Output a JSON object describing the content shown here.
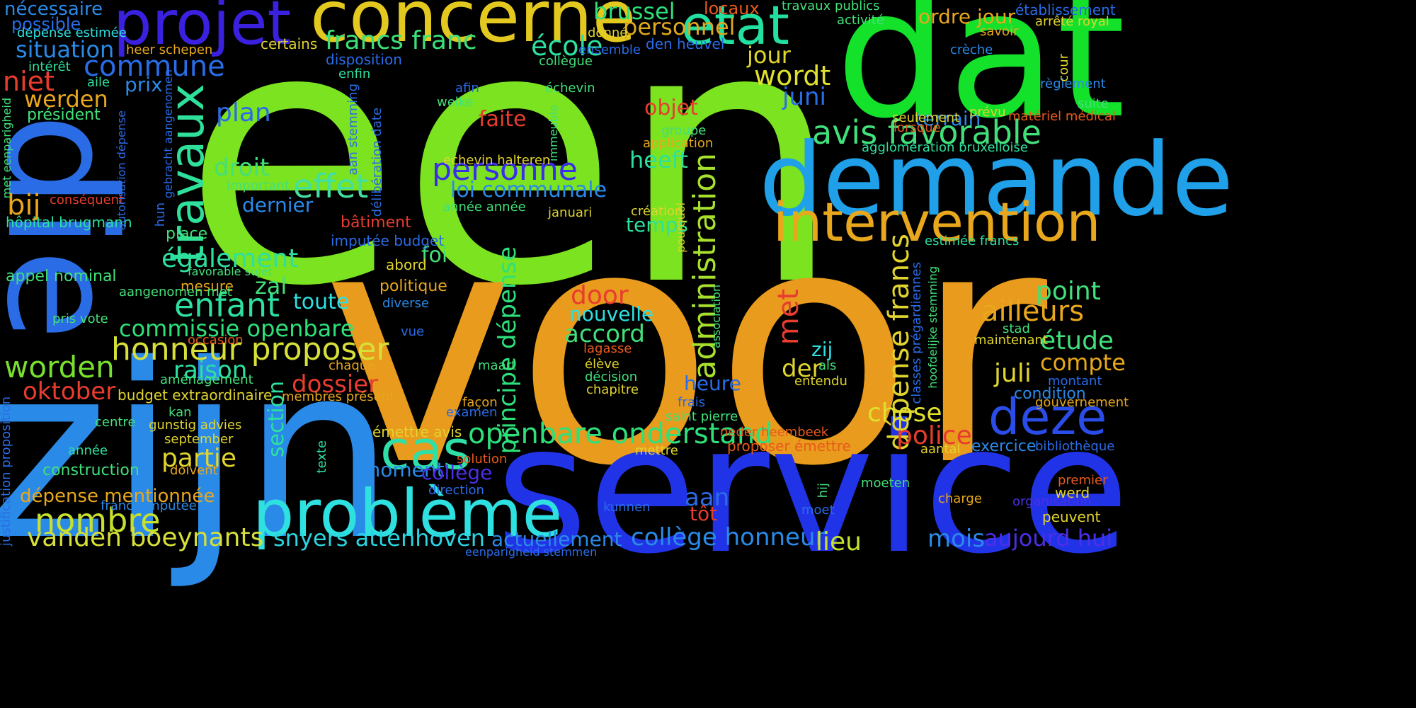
{
  "words": [
    {
      "text": "een",
      "color": "#7be320"
    },
    {
      "text": "voor",
      "color": "#e89b1c"
    },
    {
      "text": "service",
      "color": "#2133e6"
    },
    {
      "text": "zijn",
      "color": "#2a8ae8"
    },
    {
      "text": "dat",
      "color": "#14e12a"
    },
    {
      "text": "die",
      "color": "#2a6ce6"
    },
    {
      "text": "demande",
      "color": "#1fa0e8"
    },
    {
      "text": "concerne",
      "color": "#e3c81f"
    },
    {
      "text": "projet",
      "color": "#3a21e0"
    },
    {
      "text": "problème",
      "color": "#2ee0e0"
    },
    {
      "text": "intervention",
      "color": "#e8a71c"
    },
    {
      "text": "etat",
      "color": "#21e0a0"
    },
    {
      "text": "travaux",
      "color": "#2ee09a"
    },
    {
      "text": "cas",
      "color": "#2ee0a8"
    },
    {
      "text": "deze",
      "color": "#2a4ce8"
    },
    {
      "text": "avis favorable",
      "color": "#42e07a"
    },
    {
      "text": "honneur proposer",
      "color": "#d6e038"
    },
    {
      "text": "personne",
      "color": "#3a2ee8"
    },
    {
      "text": "administration",
      "color": "#a8e02e"
    },
    {
      "text": "openbare onderstand",
      "color": "#2ee07a"
    },
    {
      "text": "dépense francs",
      "color": "#e0d42e"
    },
    {
      "text": "enfant",
      "color": "#2ee0a0"
    },
    {
      "text": "nombre",
      "color": "#c6e02e"
    },
    {
      "text": "vanden boeynants",
      "color": "#d6e038"
    },
    {
      "text": "worden",
      "color": "#78e02e"
    },
    {
      "text": "principe dépense",
      "color": "#2ee07a"
    },
    {
      "text": "effet",
      "color": "#42e0a0"
    },
    {
      "text": "commune",
      "color": "#2a6ce8"
    },
    {
      "text": "snyers attenhoven",
      "color": "#2ad4e0"
    },
    {
      "text": "collège honneur",
      "color": "#2a8ae8"
    },
    {
      "text": "commissie openbare",
      "color": "#2ee07a"
    },
    {
      "text": "francs franc",
      "color": "#3ae07a"
    },
    {
      "text": "wordt",
      "color": "#e0e02e"
    },
    {
      "text": "personnel",
      "color": "#e0a81c"
    },
    {
      "text": "ailleurs",
      "color": "#e8a71c"
    },
    {
      "text": "également",
      "color": "#2ee0a0"
    },
    {
      "text": "situation",
      "color": "#2a8ae8"
    },
    {
      "text": "école",
      "color": "#2ee0a0"
    },
    {
      "text": "mois",
      "color": "#2a8ae8"
    },
    {
      "text": "aujourd hui",
      "color": "#4c2ee8"
    },
    {
      "text": "point",
      "color": "#42e07a"
    },
    {
      "text": "étude",
      "color": "#42e07a"
    },
    {
      "text": "compte",
      "color": "#e8a71c"
    },
    {
      "text": "police",
      "color": "#e83c2e"
    },
    {
      "text": "brussel",
      "color": "#2ee07a"
    },
    {
      "text": "chose",
      "color": "#e0e02e"
    },
    {
      "text": "lieu",
      "color": "#c6e02e"
    },
    {
      "text": "actuellement",
      "color": "#2a8ae8"
    },
    {
      "text": "door",
      "color": "#e83c2e"
    },
    {
      "text": "accord",
      "color": "#42e07a"
    },
    {
      "text": "dossier",
      "color": "#e83c2e"
    },
    {
      "text": "partie",
      "color": "#e0d42e"
    },
    {
      "text": "raison",
      "color": "#2ee0a0"
    },
    {
      "text": "dépense mentionnée",
      "color": "#e8a71c"
    },
    {
      "text": "oktober",
      "color": "#e83c2e"
    },
    {
      "text": "werden",
      "color": "#e8a71c"
    },
    {
      "text": "niet",
      "color": "#e83c2e"
    },
    {
      "text": "possible",
      "color": "#2a6ce8"
    },
    {
      "text": "nécessaire",
      "color": "#2a8ae8"
    },
    {
      "text": "plan",
      "color": "#2a6ce8"
    },
    {
      "text": "droit",
      "color": "#42e07a"
    },
    {
      "text": "juni",
      "color": "#2a6ce8"
    },
    {
      "text": "jour",
      "color": "#e0d42e"
    },
    {
      "text": "met",
      "color": "#e83c2e"
    },
    {
      "text": "zal",
      "color": "#42e07a"
    },
    {
      "text": "der",
      "color": "#e0d42e"
    },
    {
      "text": "aan",
      "color": "#2a6ce8"
    },
    {
      "text": "moment",
      "color": "#2a8ae8"
    },
    {
      "text": "loi communale",
      "color": "#2a8ae8"
    },
    {
      "text": "bij",
      "color": "#e8a71c"
    },
    {
      "text": "heeft",
      "color": "#2ee0a0"
    },
    {
      "text": "juli",
      "color": "#e0d42e"
    },
    {
      "text": "ordre jour",
      "color": "#e8a71c"
    },
    {
      "text": "terrain",
      "color": "#2a8ae8"
    },
    {
      "text": "objet",
      "color": "#e83c2e"
    },
    {
      "text": "faite",
      "color": "#e83c2e"
    },
    {
      "text": "prix",
      "color": "#2a8ae8"
    },
    {
      "text": "section",
      "color": "#2ee0a0"
    },
    {
      "text": "toute",
      "color": "#2ee0e0"
    },
    {
      "text": "nouvelle",
      "color": "#2ee0e0"
    },
    {
      "text": "heure",
      "color": "#2a6ce8"
    },
    {
      "text": "temps",
      "color": "#2ee0a0"
    },
    {
      "text": "dernier",
      "color": "#2a8ae8"
    },
    {
      "text": "collège",
      "color": "#4c2ee8"
    },
    {
      "text": "tôt",
      "color": "#e83c2e"
    },
    {
      "text": "foi",
      "color": "#42e07a"
    },
    {
      "text": "zij",
      "color": "#2ee0e0"
    },
    {
      "text": "condition",
      "color": "#2a8ae8"
    },
    {
      "text": "exercice",
      "color": "#2a8ae8"
    },
    {
      "text": "locaux",
      "color": "#e85a1c"
    },
    {
      "text": "établissement",
      "color": "#2a6ce8"
    },
    {
      "text": "président",
      "color": "#42e07a"
    },
    {
      "text": "construction",
      "color": "#42e07a"
    },
    {
      "text": "budget extraordinaire",
      "color": "#e0d42e"
    },
    {
      "text": "appel nominal",
      "color": "#42e07a"
    },
    {
      "text": "hôpital brugmann",
      "color": "#2ee0a0"
    },
    {
      "text": "disposition",
      "color": "#2a6ce8"
    },
    {
      "text": "den heuvel",
      "color": "#2a6ce8"
    },
    {
      "text": "ensemble",
      "color": "#2a6ce8"
    },
    {
      "text": "place",
      "color": "#42e07a"
    },
    {
      "text": "politique",
      "color": "#e8a71c"
    },
    {
      "text": "abord",
      "color": "#e0d42e"
    },
    {
      "text": "bâtiment",
      "color": "#e83c2e"
    },
    {
      "text": "imputée budget",
      "color": "#2a6ce8"
    },
    {
      "text": "mesure",
      "color": "#e8a71c"
    },
    {
      "text": "favorable sujet",
      "color": "#42e07a"
    },
    {
      "text": "aangenomen met",
      "color": "#42e07a"
    },
    {
      "text": "pris vote",
      "color": "#42e07a"
    },
    {
      "text": "conséquent",
      "color": "#e83c2e"
    },
    {
      "text": "important",
      "color": "#42e07a"
    },
    {
      "text": "occasion",
      "color": "#e85a1c"
    },
    {
      "text": "aménagement",
      "color": "#42e07a"
    },
    {
      "text": "membres présent",
      "color": "#e8a71c"
    },
    {
      "text": "gunstig advies",
      "color": "#e0d42e"
    },
    {
      "text": "september",
      "color": "#e0d42e"
    },
    {
      "text": "doivent",
      "color": "#e8a71c"
    },
    {
      "text": "centre",
      "color": "#42e07a"
    },
    {
      "text": "kan",
      "color": "#42e07a"
    },
    {
      "text": "année",
      "color": "#2ee0a0"
    },
    {
      "text": "francs imputée",
      "color": "#2a8ae8"
    },
    {
      "text": "dépense estimée",
      "color": "#2ee0e0"
    },
    {
      "text": "intérêt",
      "color": "#2ee0a0"
    },
    {
      "text": "heer schepen",
      "color": "#e8a71c"
    },
    {
      "text": "aile",
      "color": "#2ee0a0"
    },
    {
      "text": "certains",
      "color": "#e0d42e"
    },
    {
      "text": "enfin",
      "color": "#2ee0a0"
    },
    {
      "text": "afin",
      "color": "#2a6ce8"
    },
    {
      "text": "welke",
      "color": "#42e07a"
    },
    {
      "text": "collègue",
      "color": "#42e07a"
    },
    {
      "text": "donné",
      "color": "#e0d42e"
    },
    {
      "text": "échevin",
      "color": "#42e07a"
    },
    {
      "text": "echevin halteren",
      "color": "#e0d42e"
    },
    {
      "text": "année année",
      "color": "#42e07a"
    },
    {
      "text": "januari",
      "color": "#e0d42e"
    },
    {
      "text": "création",
      "color": "#e0d42e"
    },
    {
      "text": "groupe",
      "color": "#42e07a"
    },
    {
      "text": "application",
      "color": "#e8a71c"
    },
    {
      "text": "travaux publics",
      "color": "#42e07a"
    },
    {
      "text": "activité",
      "color": "#42e07a"
    },
    {
      "text": "crèche",
      "color": "#2a8ae8"
    },
    {
      "text": "savoir",
      "color": "#e8a71c"
    },
    {
      "text": "arrêté royal",
      "color": "#e0d42e"
    },
    {
      "text": "règlement",
      "color": "#2a8ae8"
    },
    {
      "text": "suite",
      "color": "#42e07a"
    },
    {
      "text": "seulement",
      "color": "#e0d42e"
    },
    {
      "text": "prévu",
      "color": "#e0d42e"
    },
    {
      "text": "lorsque",
      "color": "#e85a1c"
    },
    {
      "text": "matériel médical",
      "color": "#e85a1c"
    },
    {
      "text": "agglomération bruxelloise",
      "color": "#2ee0a0"
    },
    {
      "text": "estimée francs",
      "color": "#2ee0a0"
    },
    {
      "text": "diverse",
      "color": "#2a8ae8"
    },
    {
      "text": "vue",
      "color": "#2a6ce8"
    },
    {
      "text": "chaque",
      "color": "#e8a71c"
    },
    {
      "text": "lagasse",
      "color": "#e85a1c"
    },
    {
      "text": "élève",
      "color": "#e0d42e"
    },
    {
      "text": "décision",
      "color": "#42e07a"
    },
    {
      "text": "chapitre",
      "color": "#e0d42e"
    },
    {
      "text": "maart",
      "color": "#42e07a"
    },
    {
      "text": "façon",
      "color": "#e8a71c"
    },
    {
      "text": "examen",
      "color": "#2a6ce8"
    },
    {
      "text": "frais",
      "color": "#2a6ce8"
    },
    {
      "text": "saint pierre",
      "color": "#42e07a"
    },
    {
      "text": "neder heembeek",
      "color": "#e85a1c"
    },
    {
      "text": "proposer émettre",
      "color": "#e85a1c"
    },
    {
      "text": "émettre avis",
      "color": "#e0d42e"
    },
    {
      "text": "solution",
      "color": "#e85a1c"
    },
    {
      "text": "mettre",
      "color": "#e0d42e"
    },
    {
      "text": "direction",
      "color": "#2a6ce8"
    },
    {
      "text": "kunnen",
      "color": "#2a6ce8"
    },
    {
      "text": "moet",
      "color": "#2a6ce8"
    },
    {
      "text": "eenparigheid stemmen",
      "color": "#2a6ce8"
    },
    {
      "text": "stad",
      "color": "#42e07a"
    },
    {
      "text": "maintenant",
      "color": "#e0d42e"
    },
    {
      "text": "als",
      "color": "#42e07a"
    },
    {
      "text": "entendu",
      "color": "#e0d42e"
    },
    {
      "text": "montant",
      "color": "#2a6ce8"
    },
    {
      "text": "gouvernement",
      "color": "#e8a71c"
    },
    {
      "text": "bibliothèque",
      "color": "#2a6ce8"
    },
    {
      "text": "aantal",
      "color": "#e0d42e"
    },
    {
      "text": "moeten",
      "color": "#42e07a"
    },
    {
      "text": "premier",
      "color": "#e85a1c"
    },
    {
      "text": "werd",
      "color": "#e0d42e"
    },
    {
      "text": "charge",
      "color": "#e8a71c"
    },
    {
      "text": "organisation",
      "color": "#4c2ee8"
    },
    {
      "text": "peuvent",
      "color": "#e0d42e"
    },
    {
      "text": "hij",
      "color": "#42e07a"
    },
    {
      "text": "texte",
      "color": "#2ee0a0"
    },
    {
      "text": "cour",
      "color": "#e0d42e"
    },
    {
      "text": "met eenparigheid",
      "color": "#42e07a"
    },
    {
      "text": "justification proposition",
      "color": "#2a6ce8"
    },
    {
      "text": "hun",
      "color": "#2a6ce8"
    },
    {
      "text": "gebracht aangenomen",
      "color": "#2a6ce8"
    },
    {
      "text": "autorisation dépense",
      "color": "#2a6ce8"
    },
    {
      "text": "aan stemming",
      "color": "#2a6ce8"
    },
    {
      "text": "délibération date",
      "color": "#2a6ce8"
    },
    {
      "text": "immeuble",
      "color": "#42e07a"
    },
    {
      "text": "pourquoi",
      "color": "#e0d42e"
    },
    {
      "text": "association",
      "color": "#42e07a"
    },
    {
      "text": "classes prégardiennes",
      "color": "#2a6ce8"
    },
    {
      "text": "hoofdelijke stemming",
      "color": "#42e07a"
    }
  ]
}
